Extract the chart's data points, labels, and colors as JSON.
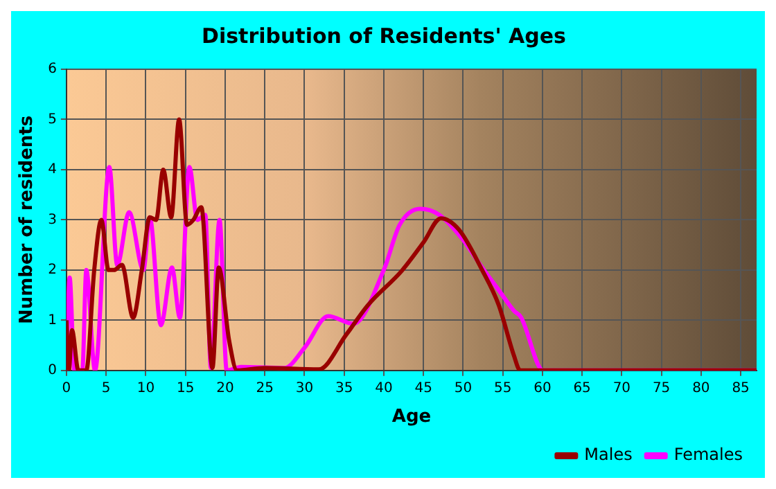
{
  "chart_data": {
    "type": "line",
    "title": "Distribution of Residents' Ages",
    "xlabel": "Age",
    "ylabel": "Number of residents",
    "xlim": [
      0,
      87
    ],
    "xticks": [
      0,
      5,
      10,
      15,
      20,
      25,
      30,
      35,
      40,
      45,
      50,
      55,
      60,
      65,
      70,
      75,
      80,
      85
    ],
    "ylim": [
      0,
      6
    ],
    "yticks": [
      0,
      1,
      2,
      3,
      4,
      5,
      6
    ],
    "grid": true,
    "legend": "bottom right",
    "marker": "none",
    "line_style": "solid",
    "series": [
      {
        "name": "Males",
        "color": "#990000",
        "x": [
          0,
          0.3,
          0.7,
          1.5,
          2.5,
          3.5,
          4.4,
          5.3,
          6,
          7,
          8.4,
          9.5,
          10.5,
          11.3,
          12.2,
          13.2,
          14.2,
          15.2,
          16,
          17,
          18.4,
          19.2,
          20.5,
          21.5,
          25,
          31.8,
          35.3,
          38,
          42.3,
          45,
          47.2,
          49.5,
          52.4,
          54.5,
          56.4,
          57.2,
          70,
          87
        ],
        "values": [
          1.0,
          0,
          0.8,
          0,
          0,
          2,
          3.0,
          2.0,
          2.0,
          2.1,
          1.05,
          2,
          3.05,
          3.0,
          4.0,
          3.05,
          5.0,
          2.9,
          3.0,
          3.25,
          0.05,
          2.05,
          0.6,
          0,
          0.05,
          0.02,
          0.72,
          1.3,
          1.99,
          2.55,
          3.03,
          2.8,
          2.0,
          1.3,
          0.3,
          0,
          0,
          0
        ]
      },
      {
        "name": "Females",
        "color": "#ff00ff",
        "x": [
          0,
          0.4,
          1,
          2,
          2.5,
          3.6,
          5.4,
          6.4,
          7.9,
          9.7,
          10.5,
          11.9,
          13.3,
          14.3,
          15.5,
          16.5,
          17.5,
          18.2,
          19.3,
          20.2,
          22,
          27.5,
          30,
          33,
          36.2,
          40,
          42,
          44.6,
          47,
          50,
          52.4,
          54.5,
          56.4,
          57.3,
          60.1,
          70,
          87
        ],
        "values": [
          0,
          1.85,
          0,
          0,
          2.0,
          0,
          4.05,
          2.1,
          3.15,
          2.0,
          3.05,
          0.9,
          2.05,
          1.05,
          4.05,
          3.0,
          3.1,
          0.05,
          3.0,
          0,
          0.07,
          0.05,
          0.45,
          1.08,
          0.93,
          2.0,
          2.9,
          3.22,
          3.1,
          2.6,
          2.05,
          1.6,
          1.19,
          1.06,
          0,
          0,
          0
        ]
      }
    ]
  }
}
